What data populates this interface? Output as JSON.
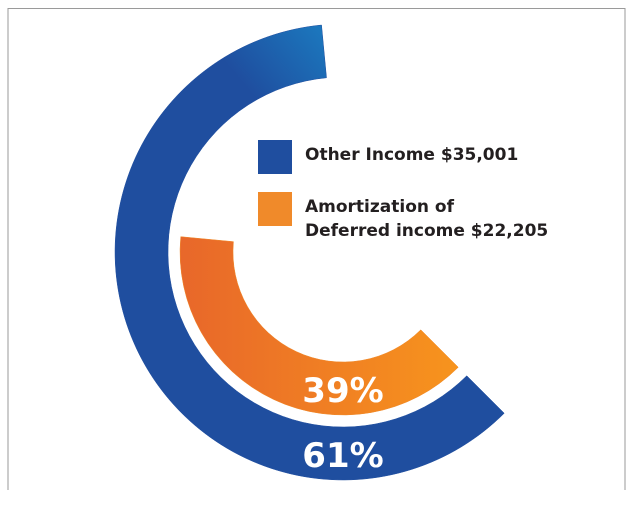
{
  "chart_data": {
    "type": "radial_bar",
    "categories": [
      "Other Income $35,001",
      "Amortization of\nDeferred income $22,205"
    ],
    "values": [
      61,
      39
    ],
    "value_labels": [
      "61%",
      "39%"
    ],
    "colors": [
      "#1f4e9f",
      "#f08a2a"
    ]
  }
}
